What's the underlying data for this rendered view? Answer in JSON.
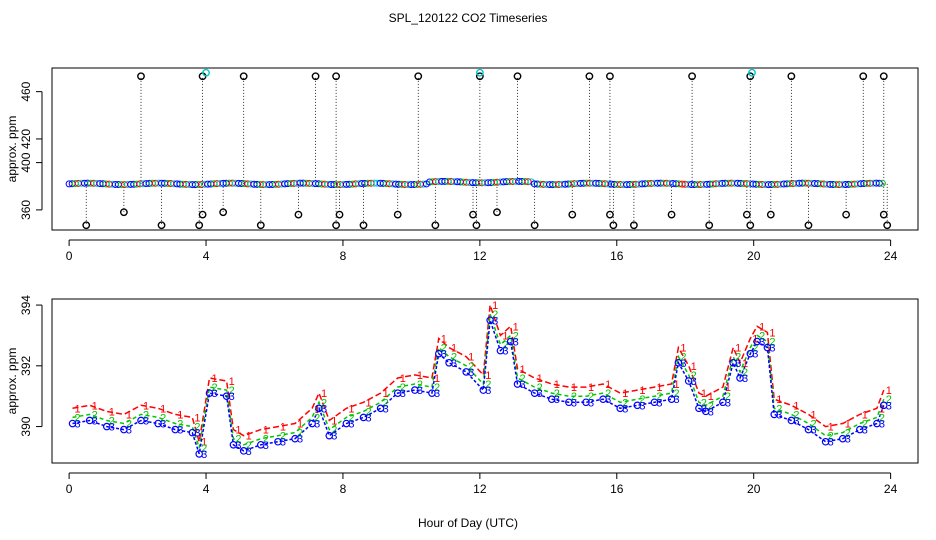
{
  "figure": {
    "title": "SPL_120122  CO2 Timeseries",
    "xlabel": "Hour of Day (UTC)"
  },
  "chart_data": [
    {
      "type": "scatter",
      "panel": "top",
      "ylabel": "approx. ppm",
      "xlim": [
        -0.5,
        24.8
      ],
      "ylim": [
        343,
        480
      ],
      "xticks": [
        0,
        4,
        8,
        12,
        16,
        20,
        24
      ],
      "yticks": [
        360,
        400,
        420,
        460
      ],
      "baseline": 382,
      "series": [
        {
          "marker": "circle",
          "color": "#000000",
          "high_outliers": [
            2.1,
            3.9,
            5.1,
            7.2,
            7.8,
            10.2,
            12.0,
            13.1,
            15.2,
            15.8,
            18.2,
            19.9,
            21.1,
            23.2,
            23.8
          ],
          "high_value": 473,
          "low_outliers": [
            0.5,
            1.6,
            2.7,
            3.8,
            3.9,
            4.5,
            5.6,
            6.7,
            7.8,
            7.9,
            8.6,
            9.6,
            10.7,
            11.8,
            11.9,
            12.5,
            13.6,
            14.7,
            15.8,
            15.9,
            16.5,
            17.6,
            18.7,
            19.8,
            19.9,
            20.5,
            21.6,
            22.7,
            23.8,
            23.9
          ],
          "low_values": [
            347,
            358,
            347,
            347,
            356,
            358,
            347,
            356,
            347,
            356,
            347,
            356,
            347,
            356,
            347,
            358,
            347,
            356,
            356,
            347,
            347,
            356,
            347,
            356,
            347,
            356,
            347,
            356,
            356,
            347
          ]
        },
        {
          "marker": "circle",
          "color": "#00c8c8",
          "points": [
            [
              4.0,
              476
            ],
            [
              12.0,
              476
            ],
            [
              19.95,
              476
            ]
          ]
        }
      ]
    },
    {
      "type": "line",
      "panel": "bottom",
      "ylabel": "approx. ppm",
      "xlim": [
        -0.5,
        24.8
      ],
      "ylim": [
        388.8,
        394.2
      ],
      "xticks": [
        0,
        4,
        8,
        12,
        16,
        20,
        24
      ],
      "yticks": [
        390,
        392,
        394
      ],
      "x": [
        0.1,
        0.6,
        1.1,
        1.6,
        2.1,
        2.6,
        3.1,
        3.6,
        3.8,
        4.1,
        4.6,
        4.8,
        5.1,
        5.6,
        6.1,
        6.6,
        7.1,
        7.3,
        7.6,
        8.1,
        8.6,
        9.1,
        9.6,
        10.1,
        10.6,
        10.8,
        11.1,
        11.6,
        12.1,
        12.3,
        12.6,
        12.9,
        13.1,
        13.6,
        14.1,
        14.6,
        15.1,
        15.6,
        16.1,
        16.6,
        17.1,
        17.6,
        17.8,
        18.1,
        18.4,
        18.6,
        19.1,
        19.4,
        19.6,
        19.9,
        20.1,
        20.4,
        20.6,
        21.1,
        21.6,
        22.1,
        22.6,
        23.1,
        23.6,
        23.8
      ],
      "series": [
        {
          "name": "1",
          "color": "#ff0000",
          "values": [
            390.6,
            390.7,
            390.5,
            390.4,
            390.7,
            390.6,
            390.4,
            390.3,
            389.5,
            391.6,
            391.5,
            389.9,
            389.7,
            389.9,
            390.0,
            390.1,
            390.6,
            391.1,
            390.2,
            390.6,
            390.8,
            391.1,
            391.6,
            391.7,
            391.6,
            392.9,
            392.6,
            392.3,
            391.7,
            394.0,
            393.0,
            393.3,
            391.9,
            391.6,
            391.4,
            391.3,
            391.3,
            391.4,
            391.1,
            391.2,
            391.3,
            391.4,
            392.6,
            392.0,
            391.1,
            391.0,
            391.3,
            392.6,
            392.1,
            392.9,
            393.3,
            393.1,
            390.9,
            390.7,
            390.4,
            390.0,
            390.1,
            390.4,
            390.6,
            391.2
          ]
        },
        {
          "name": "2",
          "color": "#00c800",
          "values": [
            390.3,
            390.4,
            390.2,
            390.1,
            390.4,
            390.3,
            390.1,
            390.0,
            389.3,
            391.3,
            391.2,
            389.6,
            389.4,
            389.6,
            389.7,
            389.8,
            390.3,
            390.8,
            389.9,
            390.3,
            390.5,
            390.8,
            391.3,
            391.4,
            391.3,
            392.6,
            392.3,
            392.0,
            391.4,
            393.7,
            392.7,
            393.0,
            391.6,
            391.3,
            391.1,
            391.0,
            391.0,
            391.1,
            390.8,
            390.9,
            391.0,
            391.1,
            392.3,
            391.7,
            390.8,
            390.7,
            391.0,
            392.3,
            391.8,
            392.6,
            393.0,
            392.8,
            390.6,
            390.4,
            390.1,
            389.7,
            389.8,
            390.1,
            390.3,
            390.9
          ]
        },
        {
          "name": "3",
          "color": "#0000ff",
          "values": [
            390.1,
            390.2,
            390.0,
            389.9,
            390.2,
            390.1,
            389.9,
            389.8,
            389.1,
            391.1,
            391.0,
            389.4,
            389.2,
            389.4,
            389.5,
            389.6,
            390.1,
            390.6,
            389.7,
            390.1,
            390.3,
            390.6,
            391.1,
            391.2,
            391.1,
            392.4,
            392.1,
            391.8,
            391.2,
            393.5,
            392.5,
            392.8,
            391.4,
            391.1,
            390.9,
            390.8,
            390.8,
            390.9,
            390.6,
            390.7,
            390.8,
            390.9,
            392.1,
            391.5,
            390.6,
            390.5,
            390.8,
            392.1,
            391.6,
            392.4,
            392.8,
            392.6,
            390.4,
            390.2,
            389.9,
            389.5,
            389.6,
            389.9,
            390.1,
            390.7
          ]
        }
      ]
    }
  ]
}
